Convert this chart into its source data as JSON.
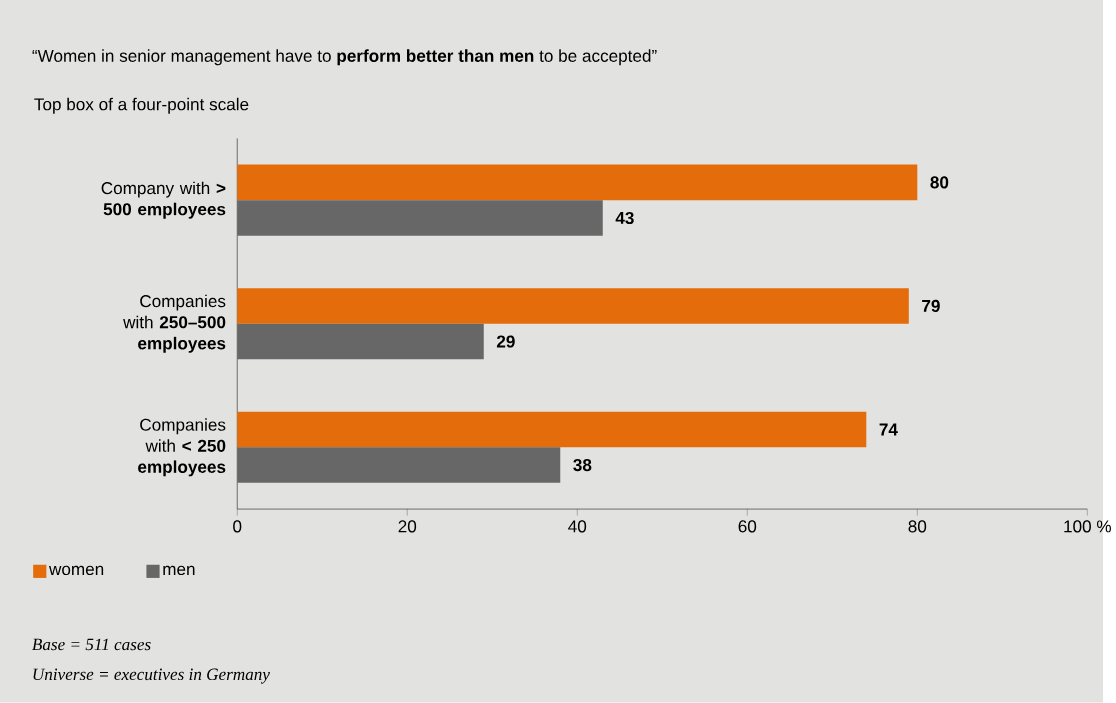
{
  "chart_data": {
    "type": "bar",
    "orientation": "horizontal",
    "title": "“Women in senior management have to **perform better than men** to be accepted”",
    "subtitle": "Top box of a four-point scale",
    "categories": [
      "Company with **> 500 employees**",
      "Companies with **250–500 employees**",
      "Companies with **< 250 employees**"
    ],
    "series": [
      {
        "name": "women",
        "color": "#e46c0a",
        "values": [
          80,
          79,
          74
        ]
      },
      {
        "name": "men",
        "color": "#676767",
        "values": [
          43,
          29,
          38
        ]
      }
    ],
    "xlim": [
      0,
      100
    ],
    "xticks": [
      0,
      20,
      40,
      60,
      80,
      {
        "value": 100,
        "label": "100 %"
      }
    ],
    "data_labels": true,
    "legend": "bottom left",
    "annotations": [
      "Base = 511 cases",
      "Universe = executives in Germany"
    ]
  }
}
